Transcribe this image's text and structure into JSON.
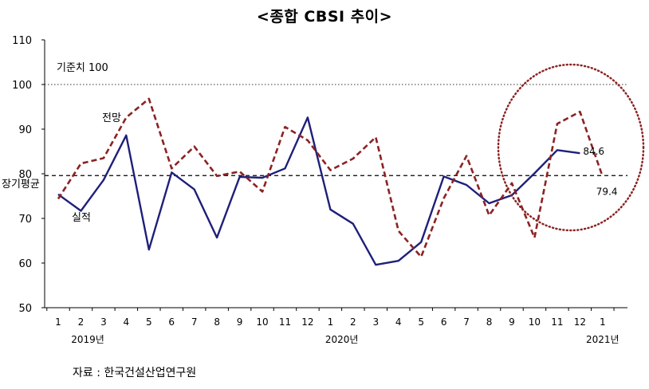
{
  "chart_data": {
    "type": "line",
    "title": "<종합 CBSI 추이>",
    "x": [
      "1",
      "2",
      "3",
      "4",
      "5",
      "6",
      "7",
      "8",
      "9",
      "10",
      "11",
      "12",
      "1",
      "2",
      "3",
      "4",
      "5",
      "6",
      "7",
      "8",
      "9",
      "10",
      "11",
      "12",
      "1"
    ],
    "year_labels": [
      {
        "label": "2019년",
        "index": 1.3
      },
      {
        "label": "2020년",
        "index": 12.5
      },
      {
        "label": "2021년",
        "index": 24.0
      }
    ],
    "ylim": [
      50,
      110
    ],
    "yticks": [
      50,
      60,
      70,
      80,
      90,
      100,
      110
    ],
    "grid": false,
    "series": [
      {
        "name": "실적",
        "color": "#1f1f7a",
        "style": "solid",
        "values": [
          75.4,
          71.7,
          78.6,
          88.6,
          63.0,
          80.3,
          76.5,
          65.7,
          79.3,
          79.1,
          81.2,
          92.6,
          72.0,
          68.8,
          59.6,
          60.5,
          64.7,
          79.4,
          77.5,
          73.4,
          75.2,
          80.1,
          85.3,
          84.6,
          null
        ],
        "label": "실적",
        "end_label": "84.6"
      },
      {
        "name": "전망",
        "color": "#8b2323",
        "style": "dashed",
        "values": [
          74.4,
          82.3,
          83.5,
          92.6,
          96.8,
          81.2,
          86.1,
          79.5,
          80.5,
          76.0,
          90.5,
          87.5,
          80.8,
          83.4,
          88.2,
          67.2,
          61.4,
          74.5,
          84.0,
          70.7,
          77.9,
          65.7,
          91.2,
          93.9,
          79.4
        ],
        "label": "전망",
        "end_label": "79.4"
      }
    ],
    "reference_lines": [
      {
        "label": "기준치 100",
        "value": 100,
        "style": "dotted"
      },
      {
        "label": "장기평균",
        "value": 79.6,
        "style": "dashed"
      }
    ],
    "annotation": "dotted circle highlighting latest months"
  },
  "source": "자료 : 한국건설산업연구원"
}
